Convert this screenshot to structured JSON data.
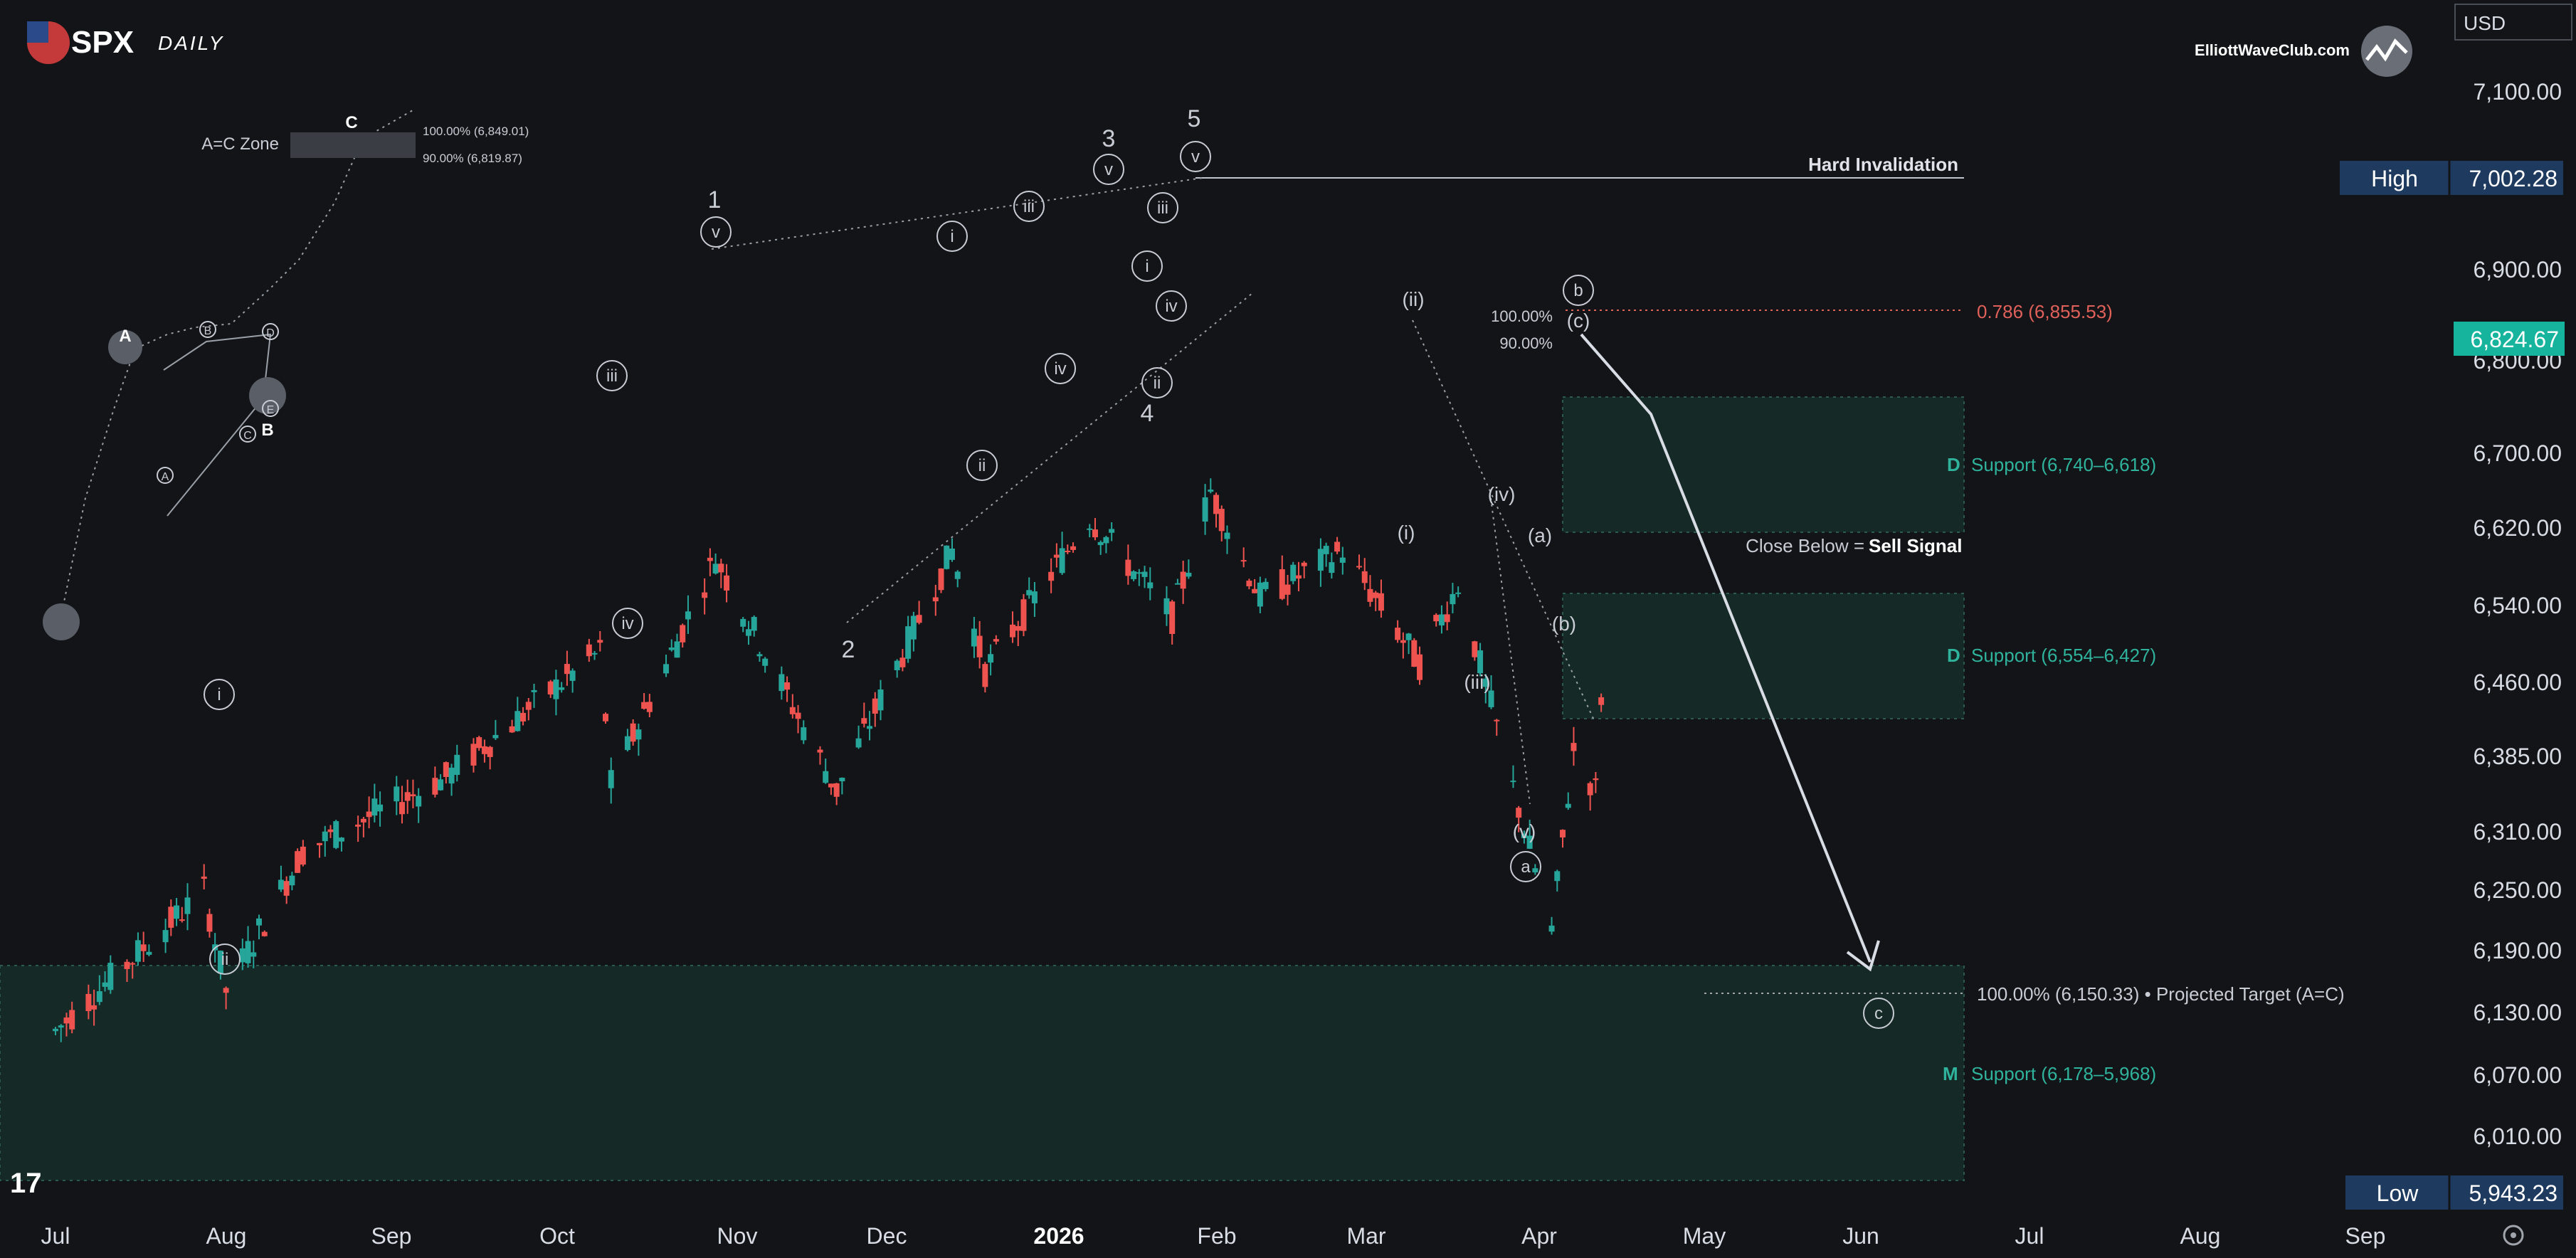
{
  "header": {
    "symbol": "SPX",
    "timeframe": "DAILY",
    "brand": "ElliottWaveClub.com",
    "currency": "USD",
    "tradingview_mark": "17"
  },
  "price_axis": {
    "labels": [
      "7,100.00",
      "6,900.00",
      "6,800.00",
      "6,700.00",
      "6,620.00",
      "6,540.00",
      "6,460.00",
      "6,385.00",
      "6,310.00",
      "6,250.00",
      "6,190.00",
      "6,130.00",
      "6,070.00",
      "6,010.00"
    ],
    "high_tag": "High",
    "high_value": "7,002.28",
    "last_value": "6,824.67",
    "low_tag": "Low",
    "low_value": "5,943.23"
  },
  "time_axis": {
    "labels": [
      "Jul",
      "Aug",
      "Sep",
      "Oct",
      "Nov",
      "Dec",
      "2026",
      "Feb",
      "Mar",
      "Apr",
      "May",
      "Jun",
      "Jul",
      "Aug",
      "Sep"
    ]
  },
  "annotations": {
    "hard_invalidation": "Hard Invalidation",
    "fib_786": "0.786 (6,855.53)",
    "fib_100_small": "100.00%",
    "fib_90_small": "90.00%",
    "support1_letter": "D",
    "support1": "Support (6,740–6,618)",
    "close_below": "Close Below =",
    "sell_signal": "Sell Signal",
    "support2_letter": "D",
    "support2": "Support (6,554–6,427)",
    "projected": "100.00% (6,150.33)  •  Projected Target (A=C)",
    "support3_letter": "M",
    "support3": "Support (6,178–5,968)"
  },
  "inset": {
    "zone_label": "A=C Zone",
    "c_label": "C",
    "fib_100": "100.00% (6,849.01)",
    "fib_90": "90.00% (6,819.87)",
    "labels": [
      "A",
      "B",
      "D",
      "E",
      "A",
      "C",
      "B"
    ]
  },
  "wave_labels": {
    "big": [
      "1",
      "2",
      "3",
      "4",
      "5"
    ],
    "circled": [
      "i",
      "ii",
      "iii",
      "iv",
      "v",
      "i",
      "ii",
      "iii",
      "iv",
      "v",
      "i",
      "ii",
      "iii",
      "iv",
      "v",
      "a",
      "b",
      "c"
    ],
    "paren": [
      "(ii)",
      "(i)",
      "(iv)",
      "(iii)",
      "(v)",
      "(a)",
      "(b)",
      "(c)"
    ]
  },
  "colors": {
    "background": "#131417",
    "up": "#26a69a",
    "down": "#ef5350",
    "zone_fill": "#17302c",
    "invalidation": "#c0c4cc",
    "fib_red": "#e0605a",
    "price_tag": "#1e3a5f",
    "last_tag": "#16b49c"
  },
  "chart_data": {
    "type": "candlestick",
    "title": "SPX DAILY",
    "xlabel": "",
    "ylabel": "",
    "x_ticks": [
      "Jul",
      "Aug",
      "Sep",
      "Oct",
      "Nov",
      "Dec",
      "2026",
      "Feb",
      "Mar",
      "Apr",
      "May",
      "Jun",
      "Jul",
      "Aug",
      "Sep"
    ],
    "y_ticks": [
      6010,
      6070,
      6130,
      6190,
      6250,
      6310,
      6385,
      6460,
      6540,
      6620,
      6700,
      6800,
      6900,
      7100
    ],
    "ylim": [
      5943.23,
      7100
    ],
    "high": 7002.28,
    "low": 5943.23,
    "last": 6824.67,
    "swing_path": [
      {
        "date": "2025-07-01",
        "close": 6180
      },
      {
        "date": "2025-07-28",
        "close": 6390
      },
      {
        "date": "2025-08-01",
        "close": 6240
      },
      {
        "date": "2025-08-15",
        "close": 6450
      },
      {
        "date": "2025-09-10",
        "close": 6560
      },
      {
        "date": "2025-10-08",
        "close": 6750
      },
      {
        "date": "2025-10-10",
        "close": 6550
      },
      {
        "date": "2025-10-29",
        "close": 6890
      },
      {
        "date": "2025-11-20",
        "close": 6540
      },
      {
        "date": "2025-12-11",
        "close": 6900
      },
      {
        "date": "2025-12-17",
        "close": 6720
      },
      {
        "date": "2026-01-05",
        "close": 6950
      },
      {
        "date": "2026-01-20",
        "close": 6800
      },
      {
        "date": "2026-01-27",
        "close": 6990
      },
      {
        "date": "2026-02-05",
        "close": 6830
      },
      {
        "date": "2026-02-20",
        "close": 6900
      },
      {
        "date": "2026-03-06",
        "close": 6730
      },
      {
        "date": "2026-03-13",
        "close": 6850
      },
      {
        "date": "2026-03-30",
        "close": 6330
      },
      {
        "date": "2026-04-03",
        "close": 6600
      },
      {
        "date": "2026-04-07",
        "close": 6540
      },
      {
        "date": "2026-04-09",
        "close": 6824.67
      }
    ],
    "zones": [
      {
        "name": "Support (6,740–6,618)",
        "low": 6618,
        "high": 6740
      },
      {
        "name": "Support (6,554–6,427)",
        "low": 6427,
        "high": 6554
      },
      {
        "name": "Support (6,178–5,968)",
        "low": 5968,
        "high": 6178
      }
    ],
    "levels": [
      {
        "name": "Hard Invalidation",
        "value": 7002.28
      },
      {
        "name": "0.786",
        "value": 6855.53
      },
      {
        "name": "Projected Target (A=C)",
        "value": 6150.33
      }
    ],
    "projection": [
      {
        "date": "2026-04-09",
        "value": 6850
      },
      {
        "date": "2026-04-24",
        "value": 6740
      },
      {
        "date": "2026-06-01",
        "value": 6160
      }
    ]
  }
}
